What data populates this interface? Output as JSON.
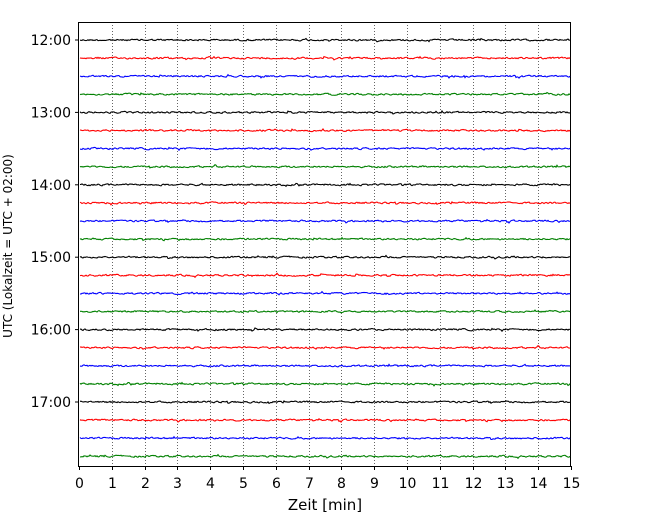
{
  "chart_data": {
    "type": "line",
    "title": "",
    "xlabel": "Zeit  [min]",
    "ylabel": "UTC (Lokalzeit = UTC + 02:00)",
    "xlim": [
      0,
      15
    ],
    "x_ticks": [
      0,
      1,
      2,
      3,
      4,
      5,
      6,
      7,
      8,
      9,
      10,
      11,
      12,
      13,
      14,
      15
    ],
    "x_tick_labels": [
      "0",
      "1",
      "2",
      "3",
      "4",
      "5",
      "6",
      "7",
      "8",
      "9",
      "10",
      "11",
      "12",
      "13",
      "14",
      "15"
    ],
    "y_tick_labels": [
      "12:00",
      "13:00",
      "14:00",
      "15:00",
      "16:00",
      "17:00"
    ],
    "trace_count": 24,
    "trace_interval_minutes": 15,
    "grid": "vertical dotted at each minute",
    "legend": "none",
    "colors": [
      "#000000",
      "#ff0000",
      "#0000ff",
      "#008000"
    ]
  }
}
